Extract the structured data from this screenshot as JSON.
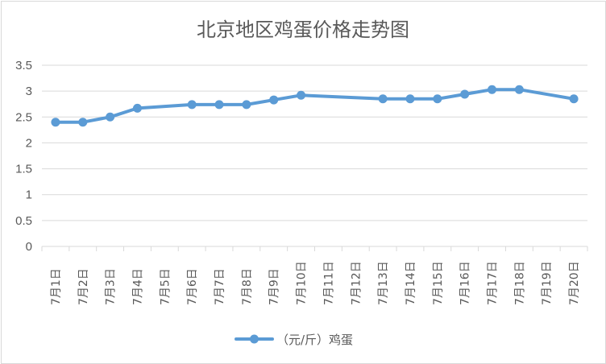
{
  "chart_data": {
    "type": "line",
    "title": "北京地区鸡蛋价格走势图",
    "categories": [
      "7月1日",
      "7月2日",
      "7月3日",
      "7月4日",
      "7月5日",
      "7月6日",
      "7月7日",
      "7月8日",
      "7月9日",
      "7月10日",
      "7月11日",
      "7月12日",
      "7月13日",
      "7月14日",
      "7月15日",
      "7月16日",
      "7月17日",
      "7月18日",
      "7月19日",
      "7月20日"
    ],
    "series": [
      {
        "name": "（元/斤）鸡蛋",
        "color": "#5b9bd5",
        "values": [
          2.4,
          2.4,
          2.5,
          2.67,
          null,
          2.74,
          2.74,
          2.74,
          2.83,
          2.92,
          null,
          null,
          2.85,
          2.85,
          2.85,
          2.94,
          3.03,
          3.03,
          null,
          2.85
        ]
      }
    ],
    "y_ticks": [
      "0",
      "0.5",
      "1",
      "1.5",
      "2",
      "2.5",
      "3",
      "3.5"
    ],
    "ylim": [
      0,
      3.5
    ],
    "grid": true,
    "legend_position": "bottom"
  }
}
